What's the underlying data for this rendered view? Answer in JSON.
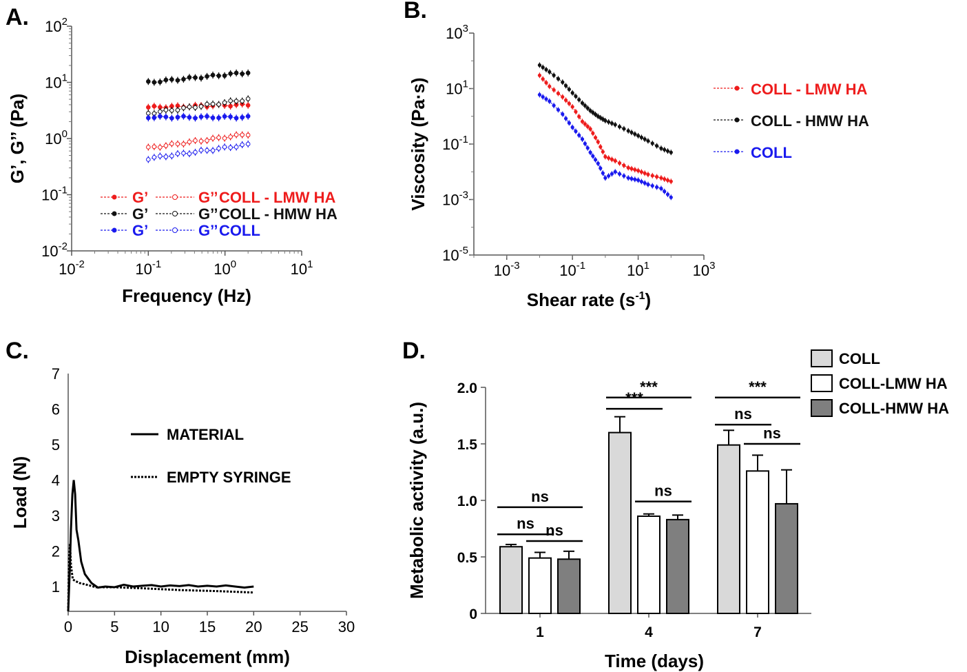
{
  "colors": {
    "red": "#ee1c1c",
    "black": "#111111",
    "blue": "#1a1aee",
    "light_gray": "#d9d9d9",
    "dark_gray": "#7f7f7f"
  },
  "chart_data": [
    {
      "id": "A",
      "panel_label": "A.",
      "type": "line",
      "xscale": "log",
      "yscale": "log",
      "xlabel": "Frequency (Hz)",
      "ylabel": "G’, G’’ (Pa)",
      "xlim": [
        0.01,
        10
      ],
      "ylim": [
        0.01,
        100
      ],
      "xticks": [
        {
          "b": "10",
          "e": "-2"
        },
        {
          "b": "10",
          "e": "-1"
        },
        {
          "b": "10",
          "e": "0"
        },
        {
          "b": "10",
          "e": "1"
        }
      ],
      "yticks": [
        {
          "b": "10",
          "e": "-2"
        },
        {
          "b": "10",
          "e": "-1"
        },
        {
          "b": "10",
          "e": "0"
        },
        {
          "b": "10",
          "e": "1"
        },
        {
          "b": "10",
          "e": "2"
        }
      ],
      "x": [
        0.1,
        2
      ],
      "series": [
        {
          "name": "G’ COLL - LMW HA",
          "color": "#ee1c1c",
          "filled": true,
          "values": [
            3.6,
            4.0
          ]
        },
        {
          "name": "G’’ COLL - LMW HA",
          "color": "#ee1c1c",
          "filled": false,
          "values": [
            0.68,
            1.2
          ]
        },
        {
          "name": "G’ COLL - HMW HA",
          "color": "#111111",
          "filled": true,
          "values": [
            10,
            15
          ]
        },
        {
          "name": "G’’ COLL - HMW HA",
          "color": "#111111",
          "filled": false,
          "values": [
            2.8,
            5.0
          ]
        },
        {
          "name": "G’ COLL",
          "color": "#1a1aee",
          "filled": true,
          "values": [
            2.4,
            2.4
          ]
        },
        {
          "name": "G’’ COLL",
          "color": "#1a1aee",
          "filled": false,
          "values": [
            0.44,
            0.78
          ]
        }
      ],
      "legend": [
        {
          "g1": "G’",
          "g2": "G’’",
          "name": "COLL - LMW HA",
          "color": "#ee1c1c"
        },
        {
          "g1": "G’",
          "g2": "G’’",
          "name": "COLL - HMW HA",
          "color": "#111111"
        },
        {
          "g1": "G’",
          "g2": "G’’",
          "name": "COLL",
          "color": "#1a1aee"
        }
      ]
    },
    {
      "id": "B",
      "panel_label": "B.",
      "type": "line",
      "xscale": "log",
      "yscale": "log",
      "xlabel": "Shear rate (s",
      "xlabel_sup": "-1",
      "xlabel_end": ")",
      "ylabel": "Viscosity (Pa·s)",
      "xlim": [
        0.0001,
        1000
      ],
      "ylim": [
        1e-05,
        1000
      ],
      "xticks": [
        {
          "b": "10",
          "e": "-3"
        },
        {
          "b": "10",
          "e": "-1"
        },
        {
          "b": "10",
          "e": "1"
        },
        {
          "b": "10",
          "e": "3"
        }
      ],
      "yticks": [
        {
          "b": "10",
          "e": "-5"
        },
        {
          "b": "10",
          "e": "-3"
        },
        {
          "b": "10",
          "e": "-1"
        },
        {
          "b": "10",
          "e": "1"
        },
        {
          "b": "10",
          "e": "3"
        }
      ],
      "x": [
        0.01,
        0.02,
        0.05,
        0.1,
        0.2,
        0.35,
        0.6,
        1,
        2,
        5,
        10,
        20,
        50,
        100
      ],
      "series": [
        {
          "name": "COLL - LMW HA",
          "color": "#ee1c1c",
          "values": [
            30,
            12,
            5,
            2.2,
            0.65,
            0.35,
            0.12,
            0.035,
            0.025,
            0.014,
            0.011,
            0.008,
            0.006,
            0.0045
          ]
        },
        {
          "name": "COLL - HMW HA",
          "color": "#111111",
          "values": [
            70,
            40,
            17,
            7,
            3,
            1.6,
            1.0,
            0.7,
            0.5,
            0.3,
            0.2,
            0.13,
            0.07,
            0.05
          ]
        },
        {
          "name": "COLL",
          "color": "#1a1aee",
          "values": [
            6,
            3.5,
            1.2,
            0.4,
            0.15,
            0.05,
            0.02,
            0.006,
            0.01,
            0.006,
            0.005,
            0.0035,
            0.0025,
            0.0012
          ]
        }
      ],
      "legend": [
        {
          "name": "COLL - LMW HA",
          "color": "#ee1c1c"
        },
        {
          "name": "COLL - HMW HA",
          "color": "#111111"
        },
        {
          "name": "COLL",
          "color": "#1a1aee"
        }
      ]
    },
    {
      "id": "C",
      "panel_label": "C.",
      "type": "line",
      "xlabel": "Displacement (mm)",
      "ylabel": "Load (N)",
      "xlim": [
        0,
        30
      ],
      "ylim": [
        0.3,
        7
      ],
      "xticks": [
        "0",
        "5",
        "10",
        "15",
        "20",
        "25",
        "30"
      ],
      "yticks": [
        "1",
        "2",
        "3",
        "4",
        "5",
        "6",
        "7"
      ],
      "series": [
        {
          "name": "MATERIAL",
          "style": "solid",
          "x": [
            0,
            0.15,
            0.3,
            0.45,
            0.6,
            0.75,
            0.9,
            1.1,
            1.4,
            1.8,
            2.5,
            3.2,
            4,
            5,
            6,
            7,
            8,
            9,
            10,
            11,
            12,
            13,
            14,
            15,
            16,
            17,
            18,
            19,
            20
          ],
          "y": [
            0.3,
            1.3,
            2.6,
            3.6,
            4.0,
            3.6,
            2.6,
            2.3,
            1.7,
            1.35,
            1.1,
            0.97,
            1.0,
            0.98,
            1.05,
            1.0,
            1.02,
            1.04,
            1.0,
            1.03,
            1.01,
            1.04,
            1.0,
            1.02,
            1.0,
            1.03,
            1.0,
            0.97,
            1.0
          ]
        },
        {
          "name": "EMPTY SYRINGE",
          "style": "dotted",
          "x": [
            0,
            0.1,
            0.2,
            0.3,
            0.5,
            0.8,
            1.2,
            2,
            3,
            5,
            8,
            12,
            16,
            20
          ],
          "y": [
            0.3,
            1.8,
            2.2,
            1.6,
            1.2,
            1.15,
            1.1,
            1.05,
            0.98,
            0.98,
            0.95,
            0.9,
            0.87,
            0.83
          ]
        }
      ],
      "legend": [
        {
          "name": "MATERIAL",
          "style": "solid"
        },
        {
          "name": "EMPTY SYRINGE",
          "style": "dotted"
        }
      ]
    },
    {
      "id": "D",
      "panel_label": "D.",
      "type": "bar",
      "xlabel": "Time (days)",
      "ylabel": "Metabolic activity (a.u.)",
      "ylim": [
        0,
        2.0
      ],
      "yticks": [
        "0",
        "0.5",
        "1.0",
        "1.5",
        "2.0"
      ],
      "categories": [
        "1",
        "4",
        "7"
      ],
      "series": [
        {
          "name": "COLL",
          "fill": "#d9d9d9",
          "values": [
            0.59,
            1.6,
            1.49
          ],
          "errors": [
            0.02,
            0.14,
            0.13
          ]
        },
        {
          "name": "COLL-LMW HA",
          "fill": "#ffffff",
          "values": [
            0.49,
            0.86,
            1.26
          ],
          "errors": [
            0.05,
            0.02,
            0.14
          ]
        },
        {
          "name": "COLL-HMW HA",
          "fill": "#7f7f7f",
          "values": [
            0.48,
            0.83,
            0.97
          ],
          "errors": [
            0.07,
            0.04,
            0.3
          ]
        }
      ],
      "annotations": [
        {
          "text": "ns",
          "group": 0,
          "from": 0,
          "to": 2,
          "y": 0.94
        },
        {
          "text": "ns",
          "group": 0,
          "from": 0,
          "to": 1,
          "y": 0.7
        },
        {
          "text": "ns",
          "group": 0,
          "from": 1,
          "to": 2,
          "y": 0.64
        },
        {
          "text": "***",
          "group": 1,
          "from": 0,
          "to": 2,
          "y": 1.91
        },
        {
          "text": "***",
          "group": 1,
          "from": 0,
          "to": 1,
          "y": 1.81
        },
        {
          "text": "ns",
          "group": 1,
          "from": 1,
          "to": 2,
          "y": 0.99
        },
        {
          "text": "***",
          "group": 2,
          "from": 0,
          "to": 2,
          "y": 1.91
        },
        {
          "text": "ns",
          "group": 2,
          "from": 0,
          "to": 1,
          "y": 1.67
        },
        {
          "text": "ns",
          "group": 2,
          "from": 1,
          "to": 2,
          "y": 1.5
        }
      ]
    }
  ]
}
